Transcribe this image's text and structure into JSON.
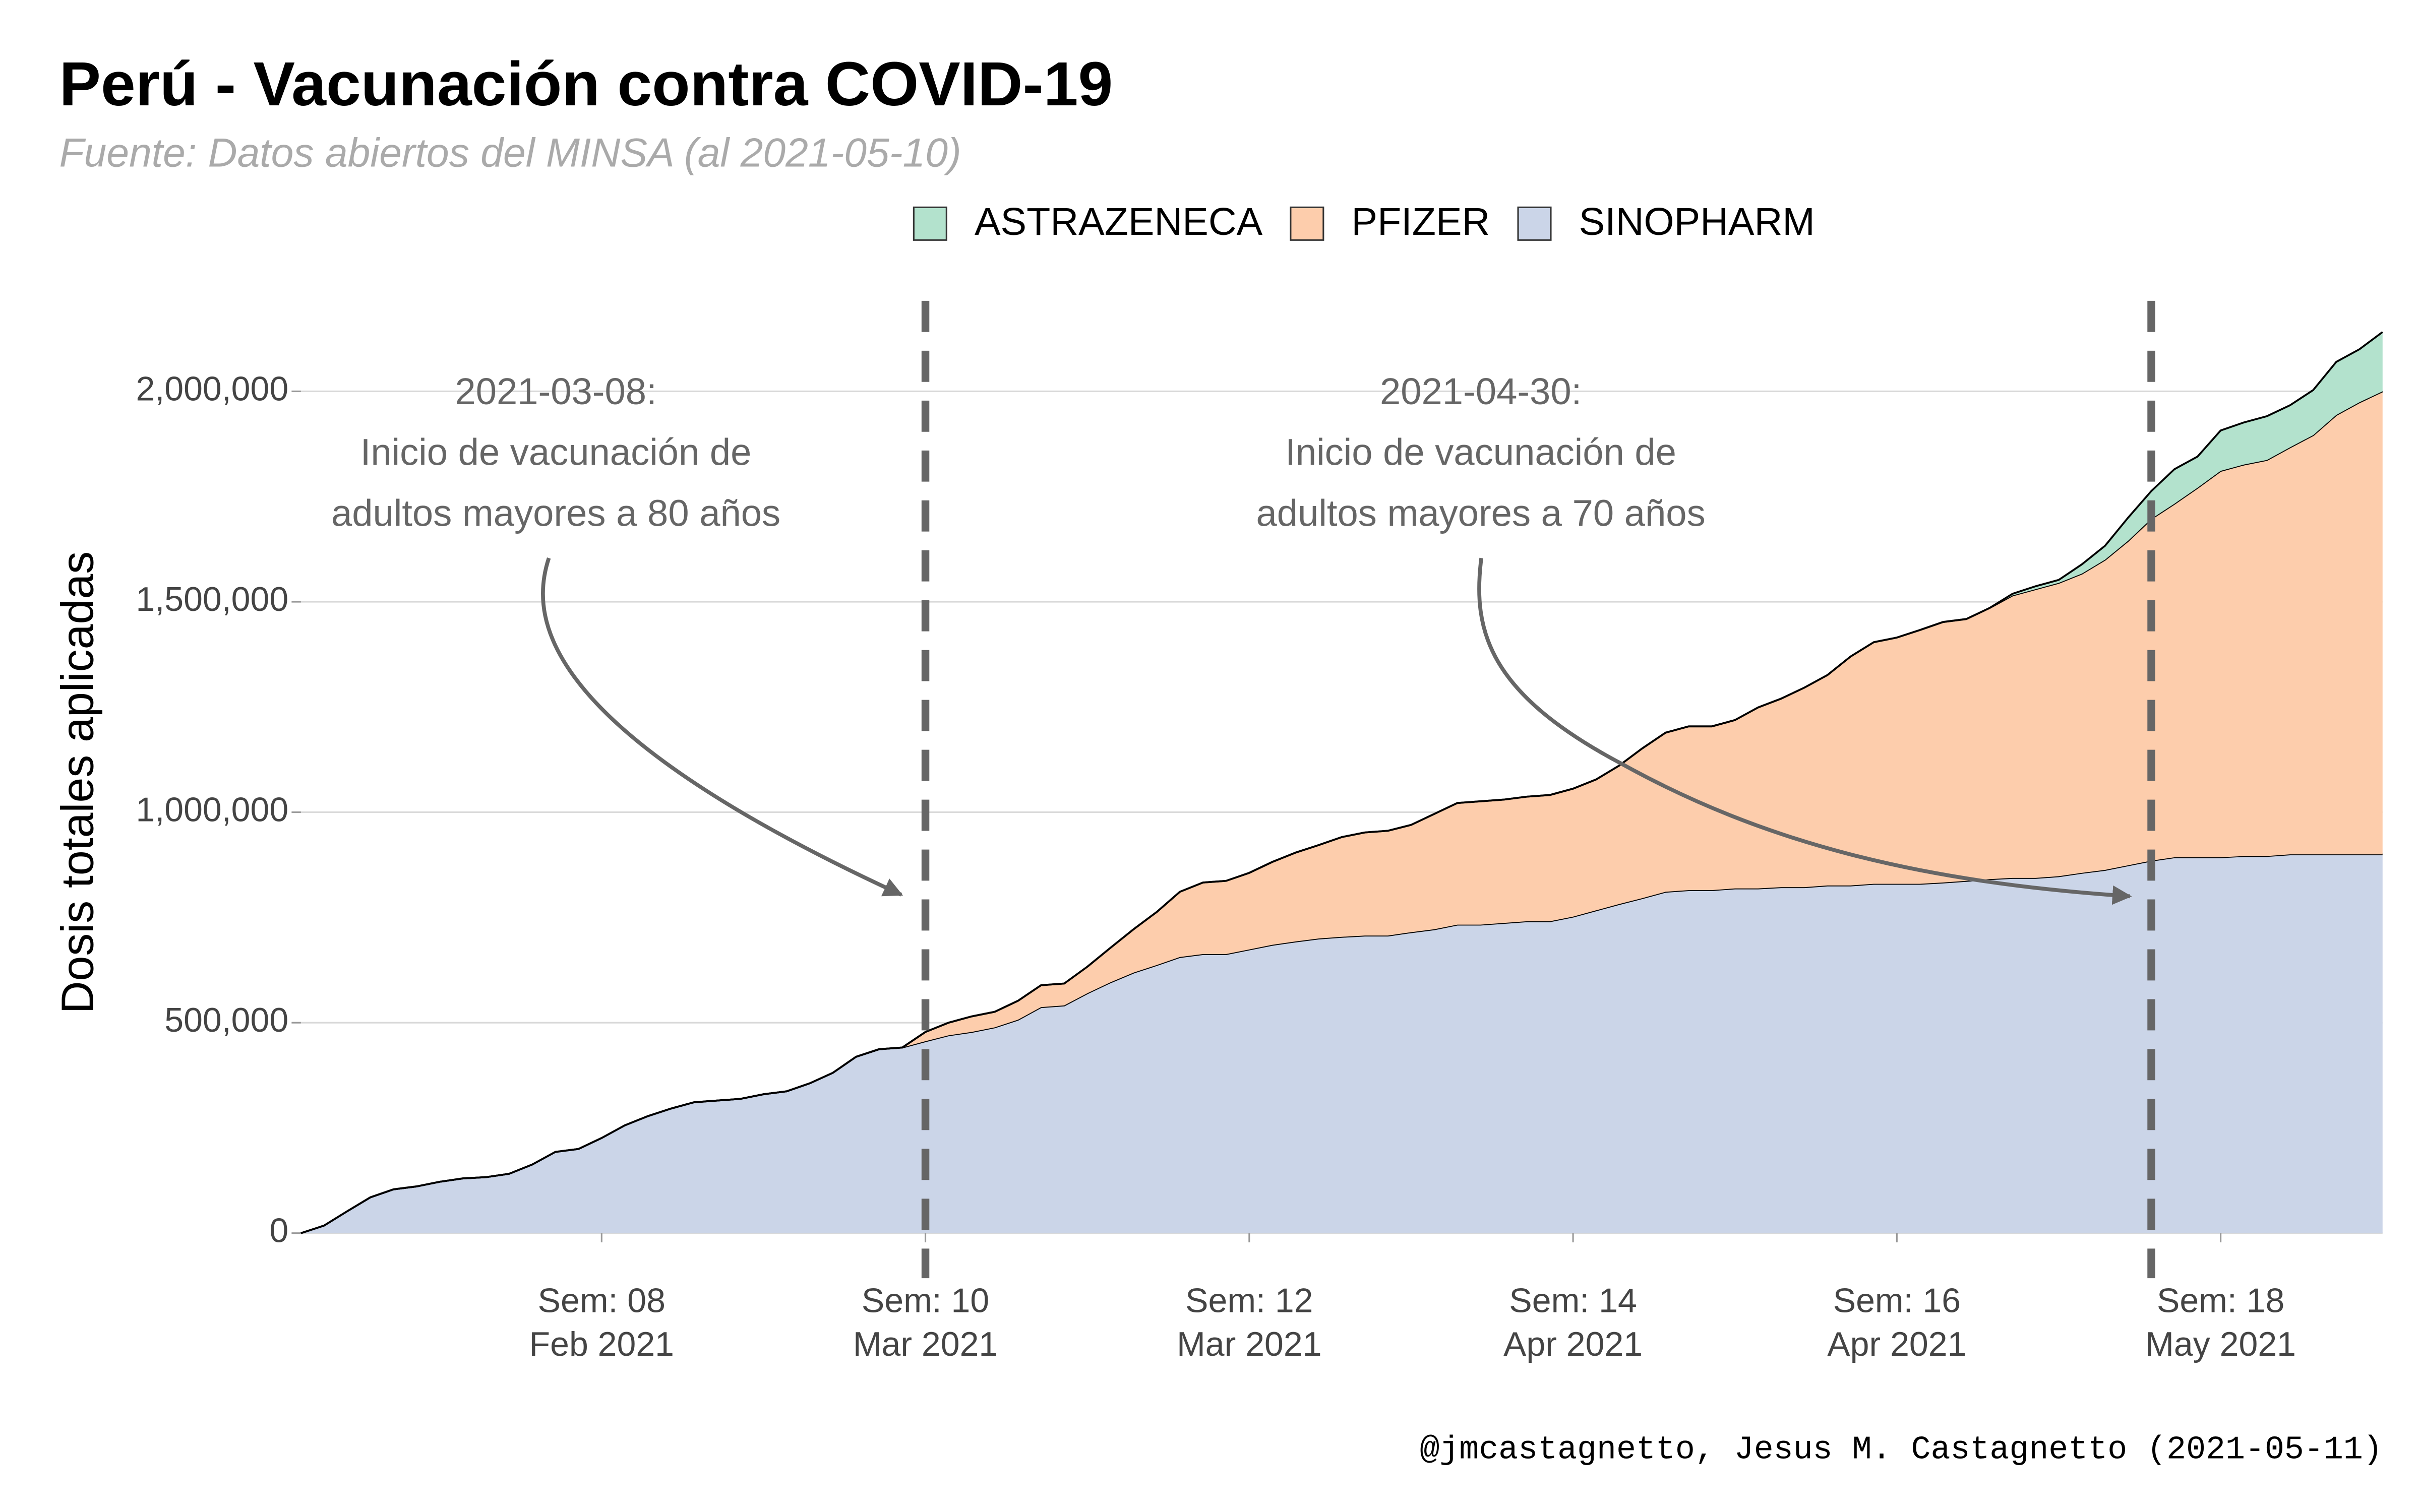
{
  "chart_data": {
    "type": "stacked-area",
    "title": "Perú - Vacunación contra COVID-19",
    "subtitle": "Fuente: Datos abiertos del MINSA (al 2021-05-10)",
    "y_label": "Dosis totales aplicadas",
    "caption": "@jmcastagnetto, Jesus M. Castagnetto (2021-05-11)",
    "x": [
      40,
      41,
      42,
      43,
      44,
      45,
      46,
      47,
      48,
      49,
      50,
      51,
      52,
      53,
      54,
      55,
      56,
      57,
      58,
      59,
      60,
      61,
      62,
      63,
      64,
      65,
      66,
      67,
      68,
      69,
      70,
      71,
      72,
      73,
      74,
      75,
      76,
      77,
      78,
      79,
      80,
      81,
      82,
      83,
      84,
      85,
      86,
      87,
      88,
      89,
      90,
      91,
      92,
      93,
      94,
      95,
      96,
      97,
      98,
      99,
      100,
      101,
      102,
      103,
      104,
      105,
      106,
      107,
      108,
      109,
      110,
      111,
      112,
      113,
      114,
      115,
      116,
      117,
      118,
      119,
      120,
      121,
      122,
      123,
      124,
      125,
      126,
      127,
      128,
      129,
      130
    ],
    "xlim": [
      40,
      130
    ],
    "xticks": [
      {
        "value": 53,
        "label": [
          "Sem: 08",
          "Feb 2021"
        ]
      },
      {
        "value": 67,
        "label": [
          "Sem: 10",
          "Mar 2021"
        ]
      },
      {
        "value": 81,
        "label": [
          "Sem: 12",
          "Mar 2021"
        ]
      },
      {
        "value": 95,
        "label": [
          "Sem: 14",
          "Apr 2021"
        ]
      },
      {
        "value": 109,
        "label": [
          "Sem: 16",
          "Apr 2021"
        ]
      },
      {
        "value": 123,
        "label": [
          "Sem: 18",
          "May 2021"
        ]
      }
    ],
    "ylim": [
      -107000,
      2215000
    ],
    "yticks": [
      0,
      {
        "value": 500000,
        "label": "500,000"
      },
      {
        "value": 1000000,
        "label": "1,000,000"
      },
      {
        "value": 1500000,
        "label": "1,500,000"
      },
      {
        "value": 2000000,
        "label": "2,000,000"
      }
    ],
    "grid": true,
    "legend": "top",
    "series": [
      {
        "name": "ASTRAZENECA",
        "color": "#b3e2cd",
        "values": [
          0,
          0,
          0,
          0,
          0,
          0,
          0,
          0,
          0,
          0,
          0,
          0,
          0,
          0,
          0,
          0,
          0,
          0,
          0,
          0,
          0,
          0,
          0,
          0,
          0,
          0,
          0,
          0,
          0,
          0,
          0,
          0,
          0,
          0,
          0,
          0,
          0,
          0,
          0,
          0,
          0,
          0,
          0,
          0,
          0,
          0,
          0,
          0,
          0,
          0,
          0,
          0,
          0,
          0,
          0,
          0,
          0,
          0,
          0,
          0,
          0,
          0,
          0,
          0,
          0,
          0,
          0,
          0,
          0,
          0,
          0,
          0,
          0,
          0,
          4000,
          7000,
          7000,
          22000,
          33000,
          55000,
          66000,
          82000,
          74000,
          96000,
          100000,
          104000,
          100000,
          107000,
          126000,
          126000,
          141000
        ]
      },
      {
        "name": "PFIZER",
        "color": "#fdcdac",
        "values": [
          0,
          0,
          0,
          0,
          0,
          0,
          0,
          0,
          0,
          0,
          0,
          0,
          0,
          0,
          0,
          0,
          0,
          0,
          0,
          0,
          0,
          0,
          0,
          0,
          0,
          0,
          0,
          22000,
          30000,
          37000,
          37000,
          45000,
          52000,
          52000,
          63000,
          82000,
          103000,
          126000,
          155000,
          170000,
          174000,
          182000,
          197000,
          211000,
          222000,
          237000,
          245000,
          249000,
          255000,
          274000,
          289000,
          293000,
          293000,
          296000,
          300000,
          304000,
          311000,
          329000,
          356000,
          378000,
          389000,
          389000,
          400000,
          430000,
          448000,
          474000,
          500000,
          544000,
          574000,
          585000,
          603000,
          619000,
          622000,
          644000,
          671000,
          686000,
          697000,
          711000,
          737000,
          771000,
          812000,
          840000,
          878000,
          918000,
          930000,
          941000,
          967000,
          996000,
          1044000,
          1074000,
          1100000
        ]
      },
      {
        "name": "SINOPHARM",
        "color": "#cbd5e8",
        "values": [
          0,
          18000,
          52000,
          85000,
          104000,
          111000,
          122000,
          130000,
          133000,
          141000,
          163000,
          193000,
          200000,
          226000,
          256000,
          278000,
          296000,
          311000,
          315000,
          319000,
          330000,
          337000,
          356000,
          381000,
          419000,
          437000,
          441000,
          456000,
          470000,
          478000,
          489000,
          507000,
          537000,
          541000,
          570000,
          596000,
          619000,
          637000,
          656000,
          663000,
          663000,
          674000,
          685000,
          693000,
          700000,
          704000,
          707000,
          707000,
          715000,
          722000,
          733000,
          733000,
          737000,
          741000,
          741000,
          752000,
          767000,
          782000,
          796000,
          811000,
          815000,
          815000,
          819000,
          819000,
          822000,
          822000,
          826000,
          826000,
          830000,
          830000,
          830000,
          833000,
          837000,
          841000,
          844000,
          844000,
          848000,
          856000,
          863000,
          874000,
          885000,
          893000,
          893000,
          893000,
          896000,
          896000,
          900000,
          900000,
          900000,
          900000,
          900000
        ]
      }
    ],
    "annotations": [
      {
        "x": 67,
        "label": [
          "2021-03-08:",
          "Inicio de vacunación de",
          "adultos mayores a 80 años"
        ]
      },
      {
        "x": 120,
        "label": [
          "2021-04-30:",
          "Inicio de vacunación de",
          "adultos mayores a 70 años"
        ]
      }
    ]
  }
}
